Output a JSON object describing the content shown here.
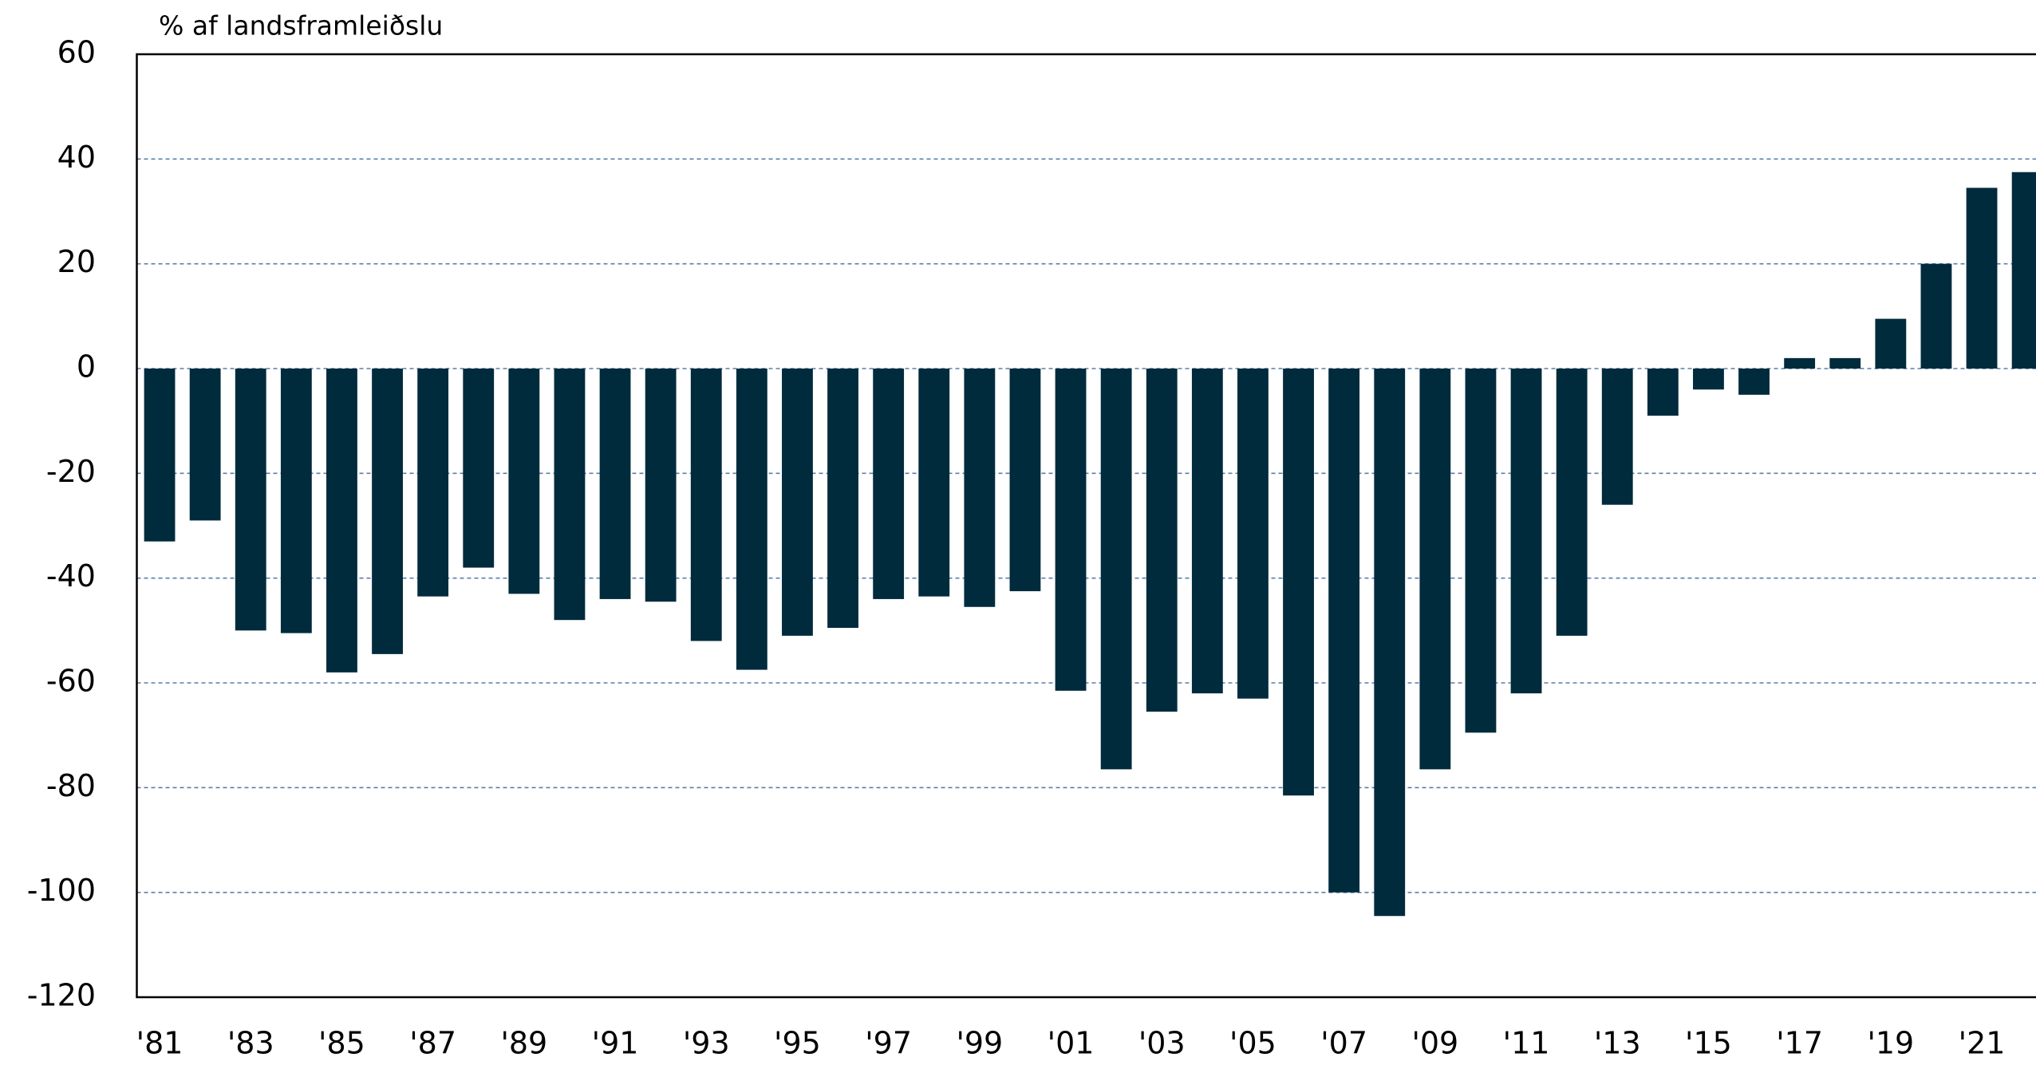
{
  "chart_data": {
    "type": "bar",
    "y_axis_label": "% af landsframleiðslu",
    "categories": [
      "'81",
      null,
      "'83",
      null,
      "'85",
      null,
      "'87",
      null,
      "'89",
      null,
      "'91",
      null,
      "'93",
      null,
      "'95",
      null,
      "'97",
      null,
      "'99",
      null,
      "'01",
      null,
      "'03",
      null,
      "'05",
      null,
      "'07",
      null,
      "'09",
      null,
      "'11",
      null,
      "'13",
      null,
      "'15",
      null,
      "'17",
      null,
      "'19",
      null,
      "'21",
      null
    ],
    "values": [
      -33,
      -29,
      -50,
      -50.5,
      -58,
      -54.5,
      -43.5,
      -38,
      -43,
      -48,
      -44,
      -44.5,
      -52,
      -57.5,
      -51,
      -49.5,
      -44,
      -43.5,
      -45.5,
      -42.5,
      -61.5,
      -76.5,
      -65.5,
      -62,
      -63,
      -81.5,
      -100,
      -104.5,
      -76.5,
      -69.5,
      -62,
      -51,
      -26,
      -9,
      -4,
      -5,
      2,
      2,
      9.5,
      20,
      34.5,
      37.5
    ],
    "color": "#002b3c",
    "ylim": [
      -120,
      60
    ],
    "yticks": [
      -120,
      -100,
      -80,
      -60,
      -40,
      -20,
      0,
      20,
      40,
      60
    ],
    "grid": true
  }
}
